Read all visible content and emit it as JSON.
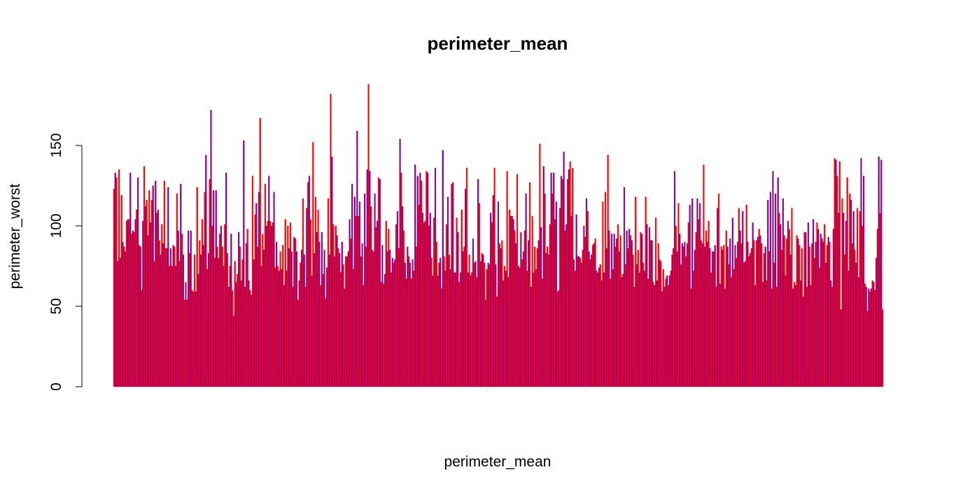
{
  "chart_data": {
    "type": "bar",
    "title": "perimeter_mean",
    "xlabel": "perimeter_mean",
    "ylabel": "perimeter_worst",
    "ylim": [
      0,
      188
    ],
    "yticks": [
      0,
      50,
      100,
      150
    ],
    "ytick_labels": [
      "0",
      "50",
      "100",
      "150"
    ],
    "grid": false,
    "legend": "none",
    "colors": [
      "#ff0000",
      "#8b008b"
    ],
    "series": [
      {
        "values": [
          123,
          133,
          130,
          78,
          135,
          80,
          119,
          90,
          87,
          84,
          103,
          104,
          104,
          133,
          95,
          97,
          96,
          104,
          110,
          130,
          88,
          87,
          60,
          103,
          137,
          112,
          116,
          94,
          122,
          102,
          116,
          125,
          78,
          128,
          108,
          110,
          91,
          82,
          101,
          89,
          128,
          86,
          86,
          124,
          75,
          86,
          75,
          88,
          87,
          75,
          120,
          97,
          78,
          126,
          95,
          82,
          54,
          65,
          54,
          97,
          83,
          97,
          60,
          59,
          82,
          59,
          124,
          70,
          91,
          82,
          104,
          88,
          121,
          144,
          73,
          83,
          129,
          172,
          100,
          122,
          80,
          122,
          87,
          80,
          95,
          100,
          87,
          75,
          101,
          133,
          83,
          62,
          75,
          95,
          60,
          44,
          78,
          65,
          70,
          96,
          87,
          66,
          79,
          153,
          62,
          89,
          98,
          66,
          60,
          57,
          131,
          79,
          107,
          114,
          87,
          121,
          167,
          75,
          95,
          85,
          126,
          100,
          103,
          131,
          103,
          100,
          102,
          121,
          74,
          90,
          75,
          72,
          84,
          73,
          88,
          63,
          104,
          72,
          100,
          86,
          102,
          84,
          62,
          93,
          92,
          84,
          54,
          66,
          77,
          85,
          117,
          82,
          62,
          111,
          127,
          131,
          104,
          69,
          152,
          83,
          118,
          96,
          110,
          90,
          63,
          96,
          70,
          85,
          55,
          74,
          117,
          82,
          182,
          143,
          101,
          81,
          100,
          94,
          86,
          83,
          71,
          90,
          76,
          61,
          81,
          81,
          84,
          104,
          92,
          126,
          73,
          118,
          106,
          159,
          106,
          115,
          81,
          89,
          63,
          120,
          87,
          135,
          188,
          134,
          112,
          85,
          84,
          120,
          99,
          103,
          130,
          129,
          65,
          88,
          64,
          70,
          103,
          84,
          98,
          85,
          71,
          80,
          77,
          79,
          101,
          109,
          86,
          154,
          133,
          112,
          97,
          77,
          67,
          87,
          81,
          77,
          67,
          79,
          72,
          138,
          87,
          131,
          113,
          133,
          128,
          108,
          102,
          103,
          134,
          133,
          100,
          108,
          80,
          69,
          105,
          136,
          90,
          69,
          77,
          80,
          61,
          147,
          81,
          72,
          101,
          118,
          82,
          73,
          126,
          127,
          71,
          71,
          105,
          96,
          65,
          71,
          110,
          84,
          87,
          123,
          136,
          71,
          82,
          69,
          71,
          92,
          77,
          78,
          68,
          129,
          114,
          78,
          83,
          82,
          77,
          54,
          73,
          77,
          76,
          108,
          102,
          119,
          136,
          76,
          56,
          115,
          89,
          86,
          91,
          66,
          75,
          72,
          134,
          68,
          110,
          106,
          106,
          104,
          97,
          89,
          132,
          75,
          74,
          96,
          79,
          84,
          97,
          120,
          72,
          91,
          127,
          62,
          106,
          71,
          87,
          73,
          86,
          91,
          151,
          99,
          67,
          137,
          120,
          83,
          87,
          82,
          101,
          133,
          120,
          133,
          104,
          115,
          59,
          60,
          111,
          131,
          129,
          146,
          97,
          101,
          129,
          135,
          140,
          106,
          136,
          79,
          72,
          107,
          81,
          81,
          80,
          77,
          85,
          100,
          93,
          117,
          109,
          84,
          79,
          82,
          88,
          89,
          92,
          72,
          71,
          74,
          76,
          66,
          115,
          71,
          121,
          86,
          144,
          97,
          67,
          95,
          73,
          95,
          87,
          92,
          101,
          84,
          94,
          68,
          70,
          124,
          76,
          97,
          86,
          98,
          94,
          91,
          82,
          62,
          118,
          76,
          85,
          71,
          96,
          95,
          77,
          72,
          118,
          101,
          67,
          99,
          91,
          91,
          65,
          63,
          105,
          66,
          89,
          79,
          78,
          59,
          73,
          62,
          67,
          69,
          63,
          69,
          72,
          82,
          86,
          134,
          100,
          84,
          114,
          95,
          76,
          89,
          87,
          90,
          81,
          89,
          102,
          113,
          61,
          117,
          72,
          85,
          96,
          117,
          104,
          114,
          91,
          89,
          138,
          87,
          97,
          90,
          103,
          86,
          71,
          84,
          84,
          88,
          62,
          111,
          120,
          64,
          87,
          85,
          88,
          61,
          97,
          87,
          76,
          92,
          68,
          105,
          73,
          88,
          80,
          90,
          111,
          97,
          89,
          109,
          77,
          78,
          113,
          90,
          81,
          83,
          86,
          102,
          91,
          63,
          91,
          93,
          98,
          94,
          89,
          65,
          83,
          87,
          66,
          116,
          84,
          121,
          61,
          134,
          77,
          120,
          62,
          130,
          108,
          101,
          85,
          117,
          94,
          69,
          92,
          103,
          98,
          82,
          111,
          61,
          65,
          63,
          94,
          92,
          88,
          66,
          86,
          56,
          96,
          96,
          62,
          102,
          87,
          63,
          89,
          104,
          80,
          90,
          102,
          98,
          74,
          95,
          92,
          90,
          101,
          77,
          88,
          93,
          90,
          66,
          62,
          98,
          142,
          141,
          131,
          108,
          140,
          48,
          117,
          108,
          82,
          103,
          130,
          72,
          120,
          116,
          89,
          109,
          85,
          77,
          111,
          68,
          109,
          142,
          100,
          131,
          64,
          62,
          47,
          61,
          59,
          61,
          66,
          65,
          60,
          80,
          98,
          143,
          108,
          141,
          48
        ]
      }
    ]
  }
}
